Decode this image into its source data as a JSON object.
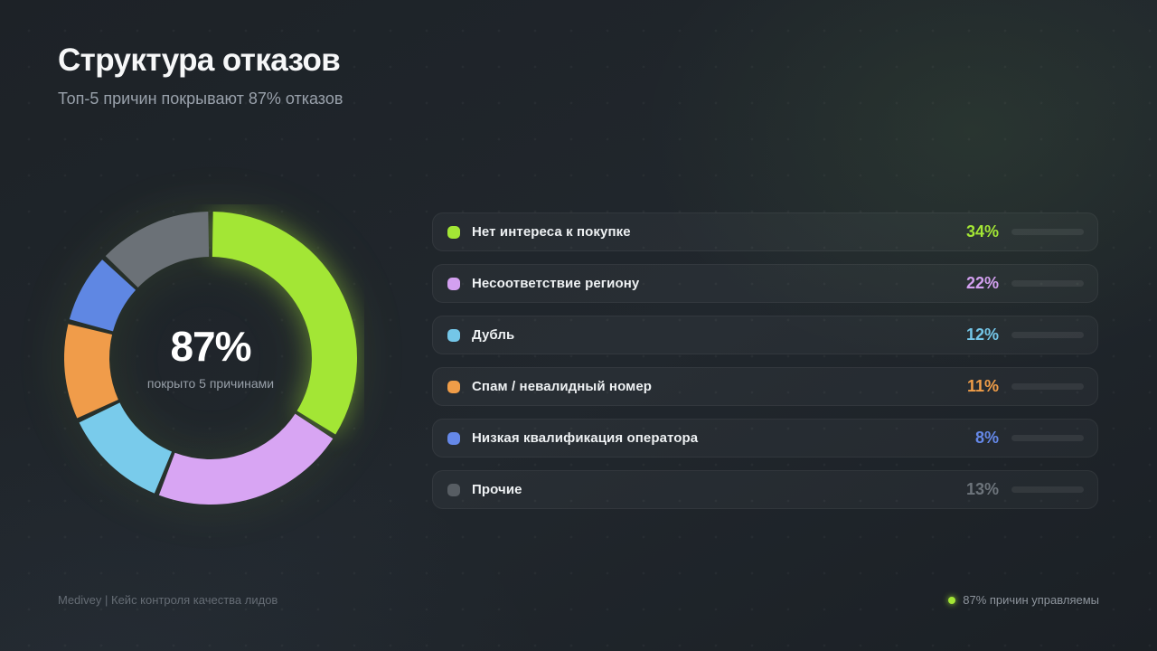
{
  "header": {
    "title": "Структура отказов",
    "subtitle": "Топ-5 причин покрывают 87% отказов"
  },
  "donut_center": {
    "value": "87%",
    "caption": "покрыто 5 причинами"
  },
  "chart_data": {
    "type": "pie",
    "donut": true,
    "title": "Структура отказов",
    "categories": [
      "Нет интереса к покупке",
      "Несоответствие региону",
      "Дубль",
      "Спам / невалидный номер",
      "Низкая квалификация оператора",
      "Прочие"
    ],
    "values": [
      34,
      22,
      12,
      11,
      8,
      13
    ],
    "colors": [
      "#a3e635",
      "#d8a5f3",
      "#79cbeb",
      "#f09c4a",
      "#5f87e3",
      "#6b7177"
    ],
    "start_angle_deg": -90,
    "direction": "clockwise",
    "center_label": "87%",
    "center_caption": "покрыто 5 причинами",
    "legend_position": "right",
    "legend_bars_normalized_to_max": 34
  },
  "legend": {
    "rows": [
      {
        "label": "Нет интереса к покупке",
        "value": 34,
        "value_label": "34%",
        "color": "#a3e635",
        "color_dim": "#7fb32b",
        "muted": false
      },
      {
        "label": "Несоответствие региону",
        "value": 22,
        "value_label": "22%",
        "color": "#d3a0f0",
        "color_dim": "#b07fd4",
        "muted": false
      },
      {
        "label": "Дубль",
        "value": 12,
        "value_label": "12%",
        "color": "#74c6e8",
        "color_dim": "#5aa7c9",
        "muted": false
      },
      {
        "label": "Спам / невалидный номер",
        "value": 11,
        "value_label": "11%",
        "color": "#f09d48",
        "color_dim": "#cd7f31",
        "muted": false
      },
      {
        "label": "Низкая квалификация оператора",
        "value": 8,
        "value_label": "8%",
        "color": "#6588e8",
        "color_dim": "#4c6fc9",
        "muted": false
      },
      {
        "label": "Прочие",
        "value": 13,
        "value_label": "13%",
        "color": "#6d747b",
        "color_dim": "#565d64",
        "muted": true
      }
    ]
  },
  "footer": {
    "left": "Medivey | Кейс контроля качества лидов",
    "right": "87% причин управляемы",
    "right_dot_color": "#a3e635"
  }
}
